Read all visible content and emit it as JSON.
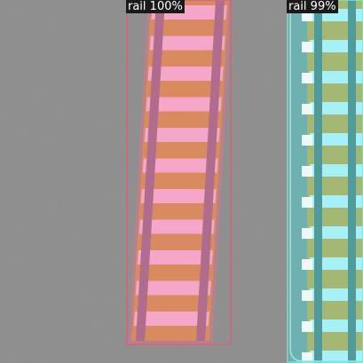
{
  "detections": [
    {
      "label": "rail 100%",
      "box_color": "#d9607a",
      "mask_color": "#f4a7c8",
      "ballast_tint": "#d98a5f"
    },
    {
      "label": "rail 99%",
      "box_color": "#7fe0d8",
      "mask_color": "#a6f0f7",
      "ballast_tint": "#a4b873"
    }
  ]
}
